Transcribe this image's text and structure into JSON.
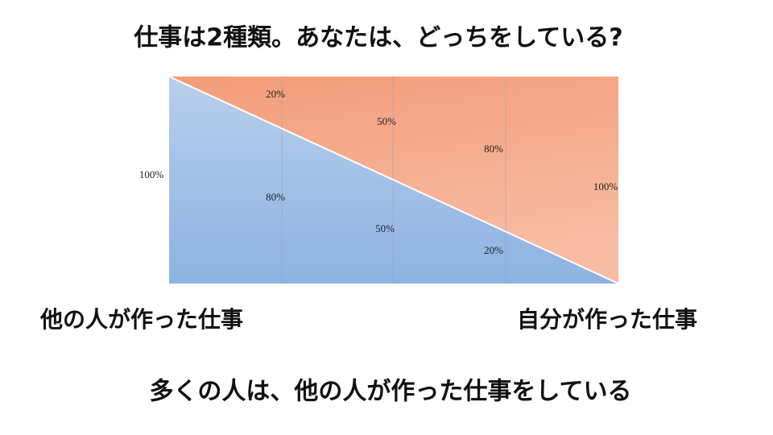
{
  "title": "仕事は2種類。あなたは、どっちをしている?",
  "diagram": {
    "left_total": "100%",
    "right_total": "100%",
    "columns": [
      {
        "own": "20%",
        "others": "80%"
      },
      {
        "own": "50%",
        "others": "50%"
      },
      {
        "own": "80%",
        "others": "20%"
      }
    ]
  },
  "labels": {
    "left": "他の人が作った仕事",
    "right": "自分が作った仕事"
  },
  "conclusion": "多くの人は、他の人が作った仕事をしている"
}
